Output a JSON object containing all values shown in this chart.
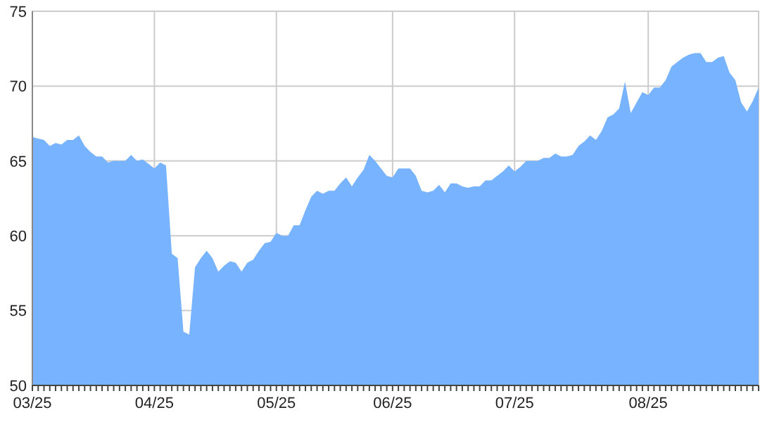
{
  "chart_data": {
    "type": "area",
    "color": "#77b3fe",
    "categories": [
      "03/25",
      null,
      null,
      null,
      null,
      null,
      null,
      null,
      null,
      null,
      null,
      null,
      null,
      null,
      null,
      null,
      null,
      null,
      null,
      null,
      null,
      "04/25",
      null,
      null,
      null,
      null,
      null,
      null,
      null,
      null,
      null,
      null,
      null,
      null,
      null,
      null,
      null,
      null,
      null,
      null,
      null,
      null,
      "05/25",
      null,
      null,
      null,
      null,
      null,
      null,
      null,
      null,
      null,
      null,
      null,
      null,
      null,
      null,
      null,
      null,
      null,
      null,
      null,
      "06/25",
      null,
      null,
      null,
      null,
      null,
      null,
      null,
      null,
      null,
      null,
      null,
      null,
      null,
      null,
      null,
      null,
      null,
      null,
      null,
      null,
      "07/25",
      null,
      null,
      null,
      null,
      null,
      null,
      null,
      null,
      null,
      null,
      null,
      null,
      null,
      null,
      null,
      null,
      null,
      null,
      null,
      null,
      null,
      null,
      "08/25",
      null,
      null,
      null,
      null,
      null,
      null,
      null,
      null,
      null,
      null,
      null,
      null,
      null,
      null,
      null,
      null,
      null,
      null,
      null
    ],
    "values": [
      66.6,
      66.5,
      66.4,
      66.0,
      66.2,
      66.1,
      66.4,
      66.4,
      66.7,
      66.0,
      65.6,
      65.3,
      65.3,
      64.9,
      65.0,
      65.0,
      65.0,
      65.4,
      65.0,
      65.1,
      64.8,
      64.5,
      64.9,
      64.7,
      58.8,
      58.5,
      53.6,
      53.4,
      57.9,
      58.5,
      59.0,
      58.5,
      57.6,
      58.0,
      58.3,
      58.2,
      57.6,
      58.2,
      58.4,
      59.0,
      59.5,
      59.6,
      60.2,
      60.0,
      60.0,
      60.7,
      60.7,
      61.7,
      62.6,
      63.0,
      62.8,
      63.0,
      63.0,
      63.5,
      63.9,
      63.3,
      63.9,
      64.4,
      65.4,
      65.0,
      64.5,
      64.0,
      63.9,
      64.5,
      64.5,
      64.5,
      64.0,
      63.0,
      62.9,
      63.0,
      63.4,
      62.9,
      63.5,
      63.5,
      63.3,
      63.2,
      63.3,
      63.3,
      63.7,
      63.7,
      64.0,
      64.3,
      64.7,
      64.3,
      64.6,
      65.0,
      65.0,
      65.0,
      65.2,
      65.2,
      65.5,
      65.3,
      65.3,
      65.4,
      66.0,
      66.3,
      66.7,
      66.4,
      67.0,
      67.9,
      68.1,
      68.5,
      70.3,
      68.2,
      68.9,
      69.6,
      69.4,
      69.9,
      69.9,
      70.4,
      71.3,
      71.6,
      71.9,
      72.1,
      72.2,
      72.2,
      71.6,
      71.6,
      71.9,
      72.0,
      70.9,
      70.4,
      68.9,
      68.3,
      69.0,
      69.9
    ],
    "ylim": [
      50,
      75
    ],
    "yticks": [
      50,
      55,
      60,
      65,
      70,
      75
    ],
    "grid": true
  }
}
